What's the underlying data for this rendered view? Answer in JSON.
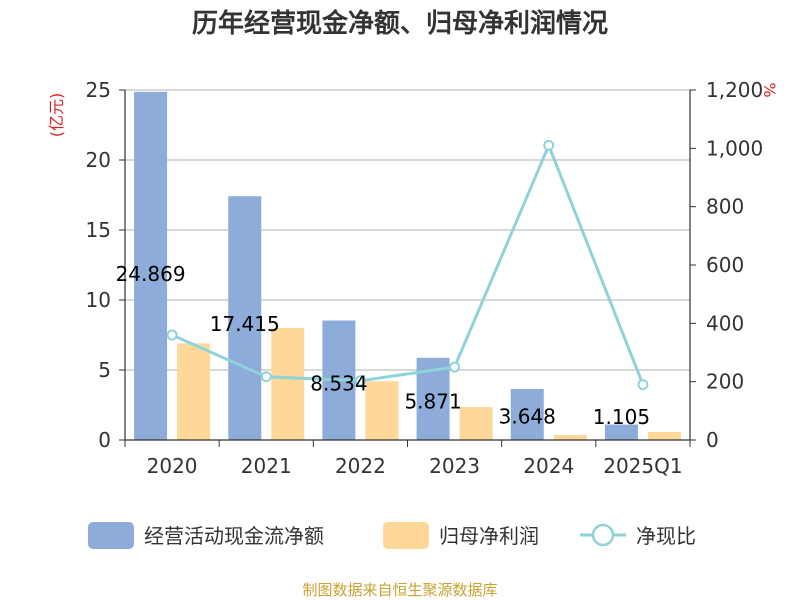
{
  "chart_data": {
    "type": "bar",
    "title": "历年经营现金净额、归母净利润情况",
    "categories": [
      "2020",
      "2021",
      "2022",
      "2023",
      "2024",
      "2025Q1"
    ],
    "series": [
      {
        "name": "经营活动现金流净额",
        "type": "bar",
        "axis": "left",
        "color": "#8eacd9",
        "values": [
          24.869,
          17.415,
          8.534,
          5.871,
          3.648,
          1.105
        ],
        "labels": [
          "24.869",
          "17.415",
          "8.534",
          "5.871",
          "3.648",
          "1.105"
        ]
      },
      {
        "name": "归母净利润",
        "type": "bar",
        "axis": "left",
        "color": "#fdd899",
        "values": [
          6.9,
          8.0,
          4.2,
          2.35,
          0.36,
          0.58
        ]
      },
      {
        "name": "净现比",
        "type": "line",
        "axis": "right",
        "color": "#8fd3da",
        "values": [
          360,
          217,
          203,
          250,
          1010,
          190
        ]
      }
    ],
    "y_left": {
      "unit_label": "(亿元)",
      "ylim": [
        0,
        25
      ],
      "ticks": [
        "0",
        "5",
        "10",
        "15",
        "20",
        "25"
      ],
      "unit_color": "#e02020"
    },
    "y_right": {
      "unit_label": "%",
      "ylim": [
        0,
        1200
      ],
      "ticks": [
        "0",
        "200",
        "400",
        "600",
        "800",
        "1,000",
        "1,200"
      ],
      "unit_color": "#e02020"
    },
    "grid": true,
    "legend_position": "bottom"
  },
  "source_text": "制图数据来自恒生聚源数据库",
  "source_color": "#c8a232"
}
